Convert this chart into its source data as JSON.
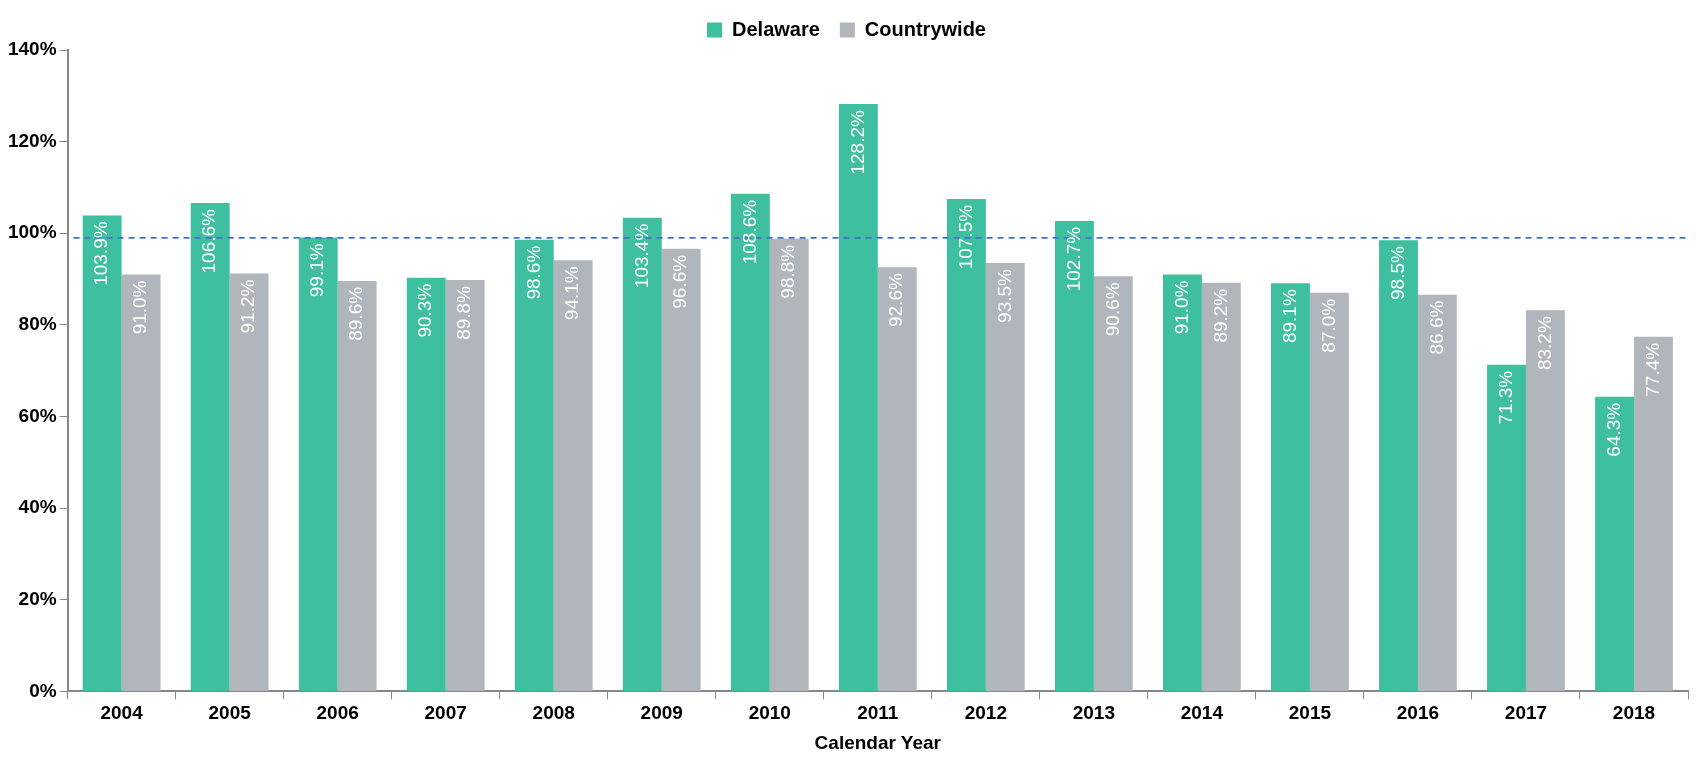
{
  "chart_data": {
    "type": "bar",
    "xlabel": "Calendar Year",
    "categories": [
      "2004",
      "2005",
      "2006",
      "2007",
      "2008",
      "2009",
      "2010",
      "2011",
      "2012",
      "2013",
      "2014",
      "2015",
      "2016",
      "2017",
      "2018"
    ],
    "series": [
      {
        "name": "Delaware",
        "color": "#3dbfa0",
        "values": [
          103.9,
          106.6,
          99.1,
          90.3,
          98.6,
          103.4,
          108.6,
          128.2,
          107.5,
          102.7,
          91.0,
          89.1,
          98.5,
          71.3,
          64.3
        ],
        "value_labels": [
          "103.9%",
          "106.6%",
          "99.1%",
          "90.3%",
          "98.6%",
          "103.4%",
          "108.6%",
          "128.2%",
          "107.5%",
          "102.7%",
          "91.0%",
          "89.1%",
          "98.5%",
          "71.3%",
          "64.3%"
        ]
      },
      {
        "name": "Countrywide",
        "color": "#b1b5bc",
        "values": [
          91.0,
          91.2,
          89.6,
          89.8,
          94.1,
          96.6,
          98.8,
          92.6,
          93.5,
          90.6,
          89.2,
          87.0,
          86.6,
          83.2,
          77.4
        ],
        "value_labels": [
          "91.0%",
          "91.2%",
          "89.6%",
          "89.8%",
          "94.1%",
          "96.6%",
          "98.8%",
          "92.6%",
          "93.5%",
          "90.6%",
          "89.2%",
          "87.0%",
          "86.6%",
          "83.2%",
          "77.4%"
        ]
      }
    ],
    "ylim": [
      0,
      140
    ],
    "yticks": [
      {
        "value": 0,
        "label": "0%"
      },
      {
        "value": 20,
        "label": "20%"
      },
      {
        "value": 40,
        "label": "40%"
      },
      {
        "value": 60,
        "label": "60%"
      },
      {
        "value": 80,
        "label": "80%"
      },
      {
        "value": 100,
        "label": "100%"
      },
      {
        "value": 120,
        "label": "120%"
      },
      {
        "value": 140,
        "label": "140%"
      }
    ],
    "ref_lines": [
      {
        "axis": "y",
        "value": 99,
        "color": "#4472c4",
        "line_style": "dashed"
      }
    ],
    "grid": false,
    "legend": "top"
  }
}
